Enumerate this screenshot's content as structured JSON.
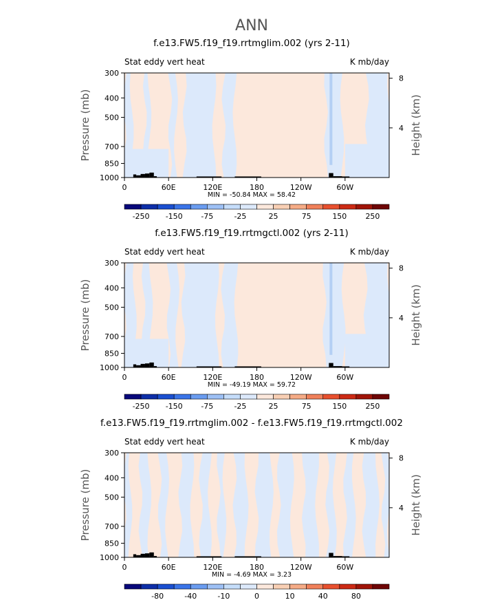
{
  "figure_title": "ANN",
  "colors": {
    "land": "#000000",
    "axis": "#000000",
    "background": "#ffffff"
  },
  "chart_data": [
    {
      "type": "contour",
      "title": "f.e13.FW5.f19_f19.rrtmglim.002 (yrs 2-11)",
      "left_label": "Stat eddy vert heat",
      "right_label": "K mb/day",
      "ylabel": "Pressure (mb)",
      "ylabel_right": "Height (km)",
      "x_ticks": [
        "0",
        "60E",
        "120E",
        "180",
        "120W",
        "60W"
      ],
      "x_tick_values": [
        0,
        60,
        120,
        180,
        240,
        300
      ],
      "xlim": [
        0,
        360
      ],
      "y_ticks": [
        300,
        400,
        500,
        700,
        850,
        1000
      ],
      "ylim": [
        1000,
        300
      ],
      "height_ticks": [
        4,
        8
      ],
      "stats_text": "MIN = -50.84   MAX =  58.42",
      "min": -50.84,
      "max": 58.42,
      "colorbar": {
        "labels": [
          "-250",
          "-150",
          "-75",
          "-25",
          "25",
          "75",
          "150",
          "250"
        ],
        "colors": [
          "#08087a",
          "#0d2ea8",
          "#1a4fd0",
          "#3a74e8",
          "#6a9cf0",
          "#9dc0f5",
          "#c5ddfa",
          "#dce9fb",
          "#fce8dc",
          "#f8cfb4",
          "#f5ab86",
          "#f0805a",
          "#e8502e",
          "#cc2a14",
          "#a01408",
          "#6e0606"
        ]
      },
      "pattern": "blue zones near 0-30E, ~60E, 80-110E, 135-150E, 275-295E, 330-360E; pink zones elsewhere"
    },
    {
      "type": "contour",
      "title": "f.e13.FW5.f19_f19.rrtmgctl.002 (yrs 2-11)",
      "left_label": "Stat eddy vert heat",
      "right_label": "K mb/day",
      "ylabel": "Pressure (mb)",
      "ylabel_right": "Height (km)",
      "x_ticks": [
        "0",
        "60E",
        "120E",
        "180",
        "120W",
        "60W"
      ],
      "x_tick_values": [
        0,
        60,
        120,
        180,
        240,
        300
      ],
      "xlim": [
        0,
        360
      ],
      "y_ticks": [
        300,
        400,
        500,
        700,
        850,
        1000
      ],
      "ylim": [
        1000,
        300
      ],
      "height_ticks": [
        4,
        8
      ],
      "stats_text": "MIN = -49.19   MAX =  59.72",
      "min": -49.19,
      "max": 59.72,
      "colorbar": {
        "labels": [
          "-250",
          "-150",
          "-75",
          "-25",
          "25",
          "75",
          "150",
          "250"
        ],
        "colors": [
          "#08087a",
          "#0d2ea8",
          "#1a4fd0",
          "#3a74e8",
          "#6a9cf0",
          "#9dc0f5",
          "#c5ddfa",
          "#dce9fb",
          "#fce8dc",
          "#f8cfb4",
          "#f5ab86",
          "#f0805a",
          "#e8502e",
          "#cc2a14",
          "#a01408",
          "#6e0606"
        ]
      },
      "pattern": "similar to top panel with slightly broader blue zones"
    },
    {
      "type": "contour",
      "title": "f.e13.FW5.f19_f19.rrtmglim.002 - f.e13.FW5.f19_f19.rrtmgctl.002",
      "left_label": "Stat eddy vert heat",
      "right_label": "K mb/day",
      "ylabel": "Pressure (mb)",
      "ylabel_right": "Height (km)",
      "x_ticks": [
        "0",
        "60E",
        "120E",
        "180",
        "120W",
        "60W"
      ],
      "x_tick_values": [
        0,
        60,
        120,
        180,
        240,
        300
      ],
      "xlim": [
        0,
        360
      ],
      "y_ticks": [
        300,
        400,
        500,
        700,
        850,
        1000
      ],
      "ylim": [
        1000,
        300
      ],
      "height_ticks": [
        4,
        8
      ],
      "stats_text": "MIN =  -4.69   MAX =   3.23",
      "min": -4.69,
      "max": 3.23,
      "colorbar": {
        "labels": [
          "-80",
          "-40",
          "-10",
          "0",
          "10",
          "40",
          "80"
        ],
        "colors": [
          "#08087a",
          "#0d2ea8",
          "#1a4fd0",
          "#3a74e8",
          "#6a9cf0",
          "#9dc0f5",
          "#c5ddfa",
          "#dce9fb",
          "#fce8dc",
          "#f8cfb4",
          "#f5ab86",
          "#f0805a",
          "#e8502e",
          "#cc2a14",
          "#a01408",
          "#6e0606"
        ]
      },
      "pattern": "alternating narrow vertical bands of light blue and light pink"
    }
  ]
}
